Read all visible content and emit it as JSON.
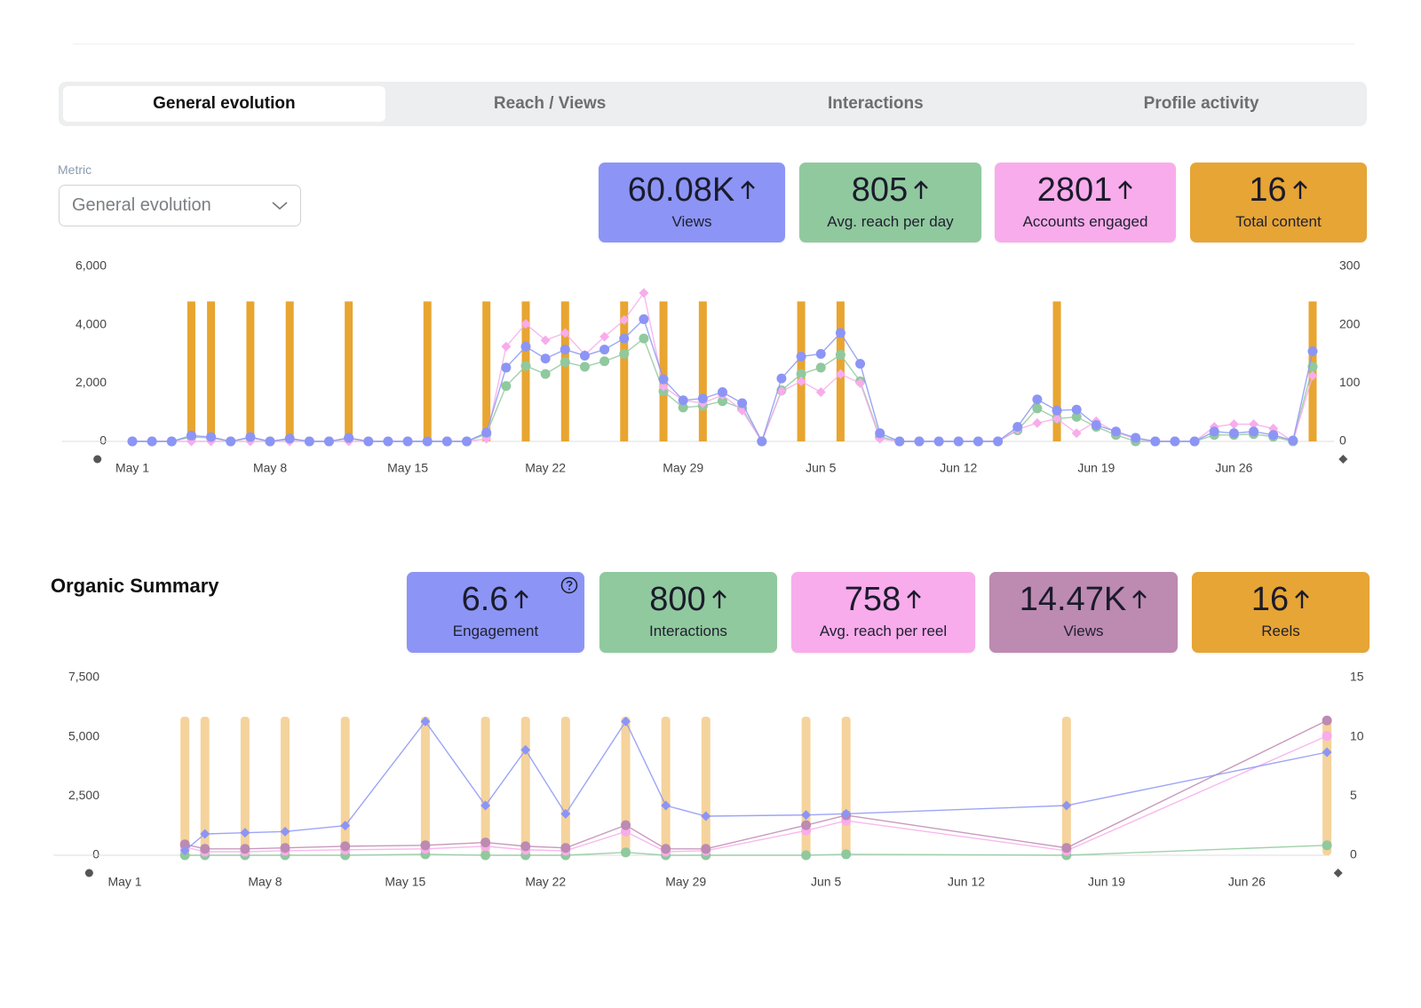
{
  "tabs": [
    "General evolution",
    "Reach / Views",
    "Interactions",
    "Profile activity"
  ],
  "metric": {
    "label": "Metric",
    "value": "General evolution"
  },
  "kpis": [
    {
      "value": "60.08K",
      "label": "Views",
      "color": "#8c95f5"
    },
    {
      "value": "805",
      "label": "Avg. reach per day",
      "color": "#90c99e"
    },
    {
      "value": "2801",
      "label": "Accounts engaged",
      "color": "#f8aceb"
    },
    {
      "value": "16",
      "label": "Total content",
      "color": "#e6a535"
    }
  ],
  "organic_summary": {
    "title": "Organic Summary",
    "kpis": [
      {
        "value": "6.6",
        "label": "Engagement",
        "color": "#8c95f5"
      },
      {
        "value": "800",
        "label": "Interactions",
        "color": "#90c99e"
      },
      {
        "value": "758",
        "label": "Avg. reach per reel",
        "color": "#f8aceb"
      },
      {
        "value": "14.47K",
        "label": "Views",
        "color": "#bd8ab2"
      },
      {
        "value": "16",
        "label": "Reels",
        "color": "#e6a535"
      }
    ]
  },
  "chart_data": [
    {
      "type": "combo",
      "x": [
        "May 1",
        "May 2",
        "May 3",
        "May 4",
        "May 5",
        "May 6",
        "May 7",
        "May 8",
        "May 9",
        "May 10",
        "May 11",
        "May 12",
        "May 13",
        "May 14",
        "May 15",
        "May 16",
        "May 17",
        "May 18",
        "May 19",
        "May 20",
        "May 21",
        "May 22",
        "May 23",
        "May 24",
        "May 25",
        "May 26",
        "May 27",
        "May 28",
        "May 29",
        "May 30",
        "May 31",
        "Jun 1",
        "Jun 2",
        "Jun 3",
        "Jun 4",
        "Jun 5",
        "Jun 6",
        "Jun 7",
        "Jun 8",
        "Jun 9",
        "Jun 10",
        "Jun 11",
        "Jun 12",
        "Jun 13",
        "Jun 14",
        "Jun 15",
        "Jun 16",
        "Jun 17",
        "Jun 18",
        "Jun 19",
        "Jun 20",
        "Jun 21",
        "Jun 22",
        "Jun 23",
        "Jun 24",
        "Jun 25",
        "Jun 26",
        "Jun 27",
        "Jun 28",
        "Jun 29",
        "Jun 30"
      ],
      "xlim": [
        "Apr 29",
        "Jul 2"
      ],
      "xticks": [
        "May 1",
        "May 8",
        "May 15",
        "May 22",
        "May 29",
        "Jun 5",
        "Jun 12",
        "Jun 19",
        "Jun 26"
      ],
      "ylim": [
        0,
        6000
      ],
      "yticks": [
        0,
        {
          "value": 2000,
          "label": "2,000"
        },
        {
          "value": 4000,
          "label": "4,000"
        },
        {
          "value": 6000,
          "label": "6,000"
        }
      ],
      "y2lim": [
        0,
        300
      ],
      "y2ticks": [
        0,
        100,
        200,
        300
      ],
      "series": [
        {
          "type": "bar",
          "axis": "y2",
          "color": "#e8a530",
          "values": [
            null,
            null,
            null,
            240,
            240,
            null,
            240,
            null,
            240,
            null,
            null,
            240,
            null,
            null,
            null,
            240,
            null,
            null,
            240,
            null,
            240,
            null,
            240,
            null,
            null,
            240,
            null,
            240,
            null,
            240,
            null,
            null,
            null,
            null,
            240,
            null,
            240,
            null,
            null,
            null,
            null,
            null,
            null,
            null,
            null,
            null,
            null,
            240,
            null,
            null,
            null,
            null,
            null,
            null,
            null,
            null,
            null,
            null,
            null,
            null,
            240
          ]
        },
        {
          "type": "line",
          "marker": "circle",
          "color": "#90c99e",
          "values": [
            0,
            0,
            0,
            150,
            120,
            0,
            120,
            0,
            80,
            0,
            0,
            100,
            0,
            0,
            0,
            0,
            0,
            0,
            250,
            1900,
            2590,
            2310,
            2720,
            2560,
            2750,
            3000,
            3530,
            1720,
            1160,
            1220,
            1380,
            1130,
            0,
            1750,
            2310,
            2530,
            2970,
            2060,
            160,
            0,
            0,
            0,
            0,
            0,
            0,
            380,
            1130,
            780,
            840,
            500,
            220,
            0,
            0,
            0,
            0,
            220,
            220,
            250,
            160,
            0,
            2560
          ]
        },
        {
          "type": "line",
          "marker": "diamond",
          "color": "#f8aceb",
          "values": [
            0,
            0,
            0,
            0,
            0,
            0,
            0,
            0,
            0,
            0,
            0,
            0,
            0,
            0,
            0,
            0,
            0,
            0,
            90,
            3250,
            4030,
            3470,
            3720,
            2970,
            3590,
            4160,
            5090,
            1880,
            1410,
            1310,
            1590,
            1060,
            0,
            1720,
            2060,
            1690,
            2310,
            2000,
            90,
            0,
            0,
            0,
            0,
            0,
            0,
            410,
            630,
            780,
            280,
            690,
            310,
            90,
            0,
            0,
            0,
            500,
            590,
            590,
            440,
            0,
            2250
          ]
        },
        {
          "type": "line",
          "marker": "circle",
          "color": "#8c95f5",
          "values": [
            0,
            0,
            0,
            200,
            150,
            0,
            150,
            0,
            100,
            0,
            0,
            120,
            0,
            0,
            0,
            0,
            0,
            0,
            300,
            2530,
            3250,
            2840,
            3150,
            2940,
            3150,
            3530,
            4190,
            2130,
            1410,
            1470,
            1690,
            1310,
            0,
            2160,
            2910,
            3000,
            3720,
            2660,
            280,
            0,
            0,
            0,
            0,
            0,
            0,
            500,
            1440,
            1060,
            1090,
            560,
            340,
            120,
            0,
            0,
            0,
            340,
            280,
            340,
            220,
            30,
            3090
          ]
        }
      ]
    },
    {
      "type": "combo",
      "x": [
        "May 4",
        "May 5",
        "May 7",
        "May 9",
        "May 12",
        "May 16",
        "May 19",
        "May 21",
        "May 23",
        "May 26",
        "May 28",
        "May 30",
        "Jun 4",
        "Jun 6",
        "Jun 17",
        "Jun 30"
      ],
      "xlim": [
        "Apr 29",
        "Jul 1"
      ],
      "xticks": [
        "May 1",
        "May 8",
        "May 15",
        "May 22",
        "May 29",
        "Jun 5",
        "Jun 12",
        "Jun 19",
        "Jun 26"
      ],
      "ylim": [
        0,
        7500
      ],
      "yticks": [
        0,
        {
          "value": 2500,
          "label": "2,500"
        },
        {
          "value": 5000,
          "label": "5,000"
        },
        {
          "value": 7500,
          "label": "7,500"
        }
      ],
      "y2lim": [
        0,
        15
      ],
      "y2ticks": [
        0,
        5,
        10,
        15
      ],
      "series": [
        {
          "type": "bar",
          "axis": "y2",
          "color": "#f5d39c",
          "values": [
            11.7,
            11.7,
            11.7,
            11.7,
            11.7,
            11.7,
            11.7,
            11.7,
            11.7,
            11.7,
            11.7,
            11.7,
            11.7,
            11.7,
            11.7,
            11.7
          ]
        },
        {
          "type": "line",
          "marker": "circle",
          "color": "#90c99e",
          "values": [
            0,
            0,
            0,
            0,
            0,
            40,
            0,
            0,
            0,
            120,
            0,
            0,
            0,
            40,
            0,
            420
          ]
        },
        {
          "type": "line",
          "marker": "circle",
          "color": "#f8aceb",
          "values": [
            350,
            150,
            150,
            190,
            230,
            270,
            380,
            230,
            190,
            1000,
            150,
            190,
            1040,
            1460,
            190,
            5040
          ]
        },
        {
          "type": "line",
          "marker": "circle",
          "color": "#bd8ab2",
          "values": [
            460,
            270,
            270,
            310,
            380,
            420,
            540,
            380,
            310,
            1270,
            270,
            270,
            1270,
            1690,
            310,
            5690
          ]
        },
        {
          "type": "line",
          "marker": "diamond",
          "axis": "y2",
          "color": "#8c95f5",
          "values": [
            0.4,
            1.8,
            1.9,
            2.0,
            2.5,
            11.3,
            4.2,
            8.9,
            3.5,
            11.3,
            4.2,
            3.3,
            3.4,
            3.5,
            4.2,
            8.7
          ]
        }
      ]
    }
  ]
}
